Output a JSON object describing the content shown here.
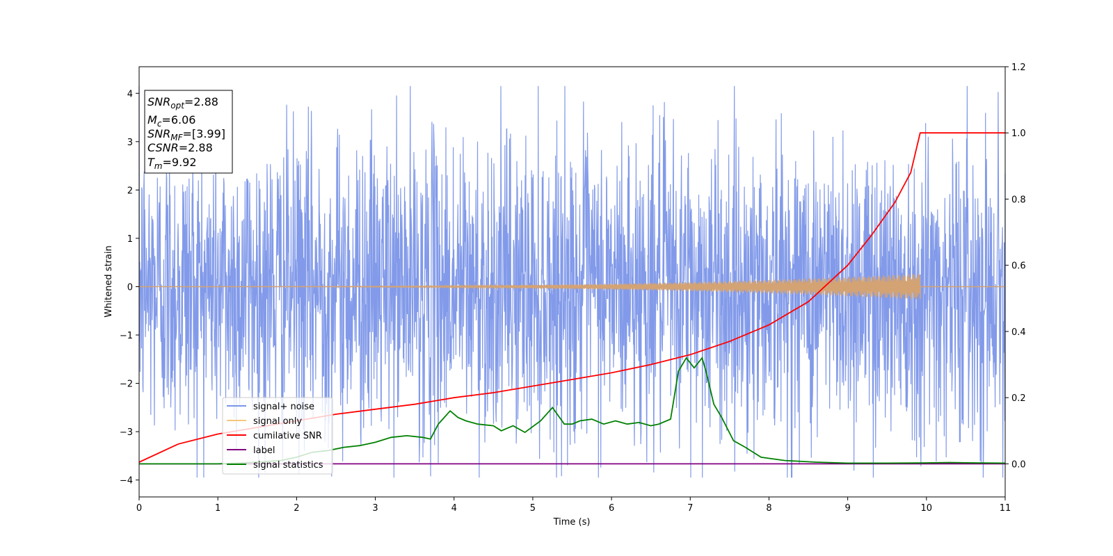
{
  "chart_data": {
    "type": "line",
    "xlabel": "Time (s)",
    "ylabel": "Whitened strain",
    "xlim": [
      0,
      11
    ],
    "ylim_left": [
      -4.35,
      4.55
    ],
    "ylim_right": [
      -0.1,
      1.2
    ],
    "x_ticks": [
      0,
      1,
      2,
      3,
      4,
      5,
      6,
      7,
      8,
      9,
      10,
      11
    ],
    "y_ticks_left": [
      -4,
      -3,
      -2,
      -1,
      0,
      1,
      2,
      3,
      4
    ],
    "y_ticks_right": [
      "0.0",
      "0.2",
      "0.4",
      "0.6",
      "0.8",
      "1.0",
      "1.2"
    ],
    "grid": false,
    "info_box": {
      "lines": [
        {
          "sym": "SNR",
          "sub": "opt",
          "value": "=2.88"
        },
        {
          "sym": "M",
          "sub": "c",
          "value": "=6.06"
        },
        {
          "sym": "SNR",
          "sub": "MF",
          "value": "=[3.99]"
        },
        {
          "sym": "CSNR",
          "sub": "",
          "value": "=2.88"
        },
        {
          "sym": "T",
          "sub": "m",
          "value": "=9.92"
        }
      ]
    },
    "legend": {
      "position": "lower-left",
      "entries": [
        {
          "label": "signal+ noise",
          "color": "#7b95e8"
        },
        {
          "label": "signal only",
          "color": "#f6c77a"
        },
        {
          "label": "cumilative SNR",
          "color": "#ff0000"
        },
        {
          "label": "label",
          "color": "#800080"
        },
        {
          "label": "signal statistics",
          "color": "#008000"
        }
      ]
    },
    "series": [
      {
        "name": "signal+ noise",
        "axis": "left",
        "color": "#7b95e8",
        "description_values": {
          "x_range": [
            0,
            11
          ],
          "typical_amplitude": 2.0,
          "max": 4.15,
          "min": -3.95
        }
      },
      {
        "name": "signal only",
        "axis": "left",
        "color": "#d4a373",
        "chirp": {
          "start": 0,
          "merger_time": 9.92,
          "peak_amplitude": 0.27
        }
      },
      {
        "name": "cumilative SNR",
        "axis": "right",
        "color": "#ff0000",
        "x": [
          0,
          0.5,
          1,
          1.5,
          2,
          2.5,
          3,
          3.5,
          4,
          4.5,
          5,
          5.5,
          6,
          6.5,
          7,
          7.5,
          8,
          8.5,
          9,
          9.3,
          9.6,
          9.8,
          9.92,
          11
        ],
        "y": [
          0.005,
          0.06,
          0.09,
          0.11,
          0.13,
          0.15,
          0.165,
          0.18,
          0.2,
          0.215,
          0.235,
          0.255,
          0.275,
          0.3,
          0.33,
          0.37,
          0.42,
          0.49,
          0.6,
          0.69,
          0.79,
          0.88,
          1.0,
          1.0
        ]
      },
      {
        "name": "label",
        "axis": "right",
        "color": "#800080",
        "x": [
          0,
          11
        ],
        "y": [
          0,
          0
        ]
      },
      {
        "name": "signal statistics",
        "axis": "right",
        "color": "#008000",
        "x": [
          0,
          1.0,
          1.5,
          1.8,
          2.0,
          2.2,
          2.4,
          2.6,
          2.8,
          3.0,
          3.2,
          3.4,
          3.6,
          3.7,
          3.8,
          3.95,
          4.05,
          4.15,
          4.3,
          4.5,
          4.6,
          4.75,
          4.9,
          5.1,
          5.25,
          5.4,
          5.5,
          5.6,
          5.75,
          5.9,
          6.05,
          6.2,
          6.35,
          6.5,
          6.6,
          6.75,
          6.85,
          6.95,
          7.05,
          7.15,
          7.2,
          7.3,
          7.4,
          7.55,
          7.7,
          7.9,
          8.2,
          8.6,
          9.0,
          9.5,
          10.0,
          10.3,
          10.6,
          11.0
        ],
        "y": [
          0,
          0.0,
          0.005,
          0.01,
          0.02,
          0.035,
          0.04,
          0.05,
          0.055,
          0.065,
          0.08,
          0.085,
          0.08,
          0.075,
          0.12,
          0.16,
          0.14,
          0.13,
          0.12,
          0.115,
          0.1,
          0.115,
          0.095,
          0.13,
          0.17,
          0.12,
          0.12,
          0.13,
          0.135,
          0.12,
          0.13,
          0.12,
          0.125,
          0.115,
          0.12,
          0.135,
          0.28,
          0.32,
          0.29,
          0.32,
          0.28,
          0.18,
          0.14,
          0.07,
          0.05,
          0.02,
          0.01,
          0.005,
          0.002,
          0.002,
          0.003,
          0.004,
          0.003,
          0.002
        ]
      }
    ]
  }
}
